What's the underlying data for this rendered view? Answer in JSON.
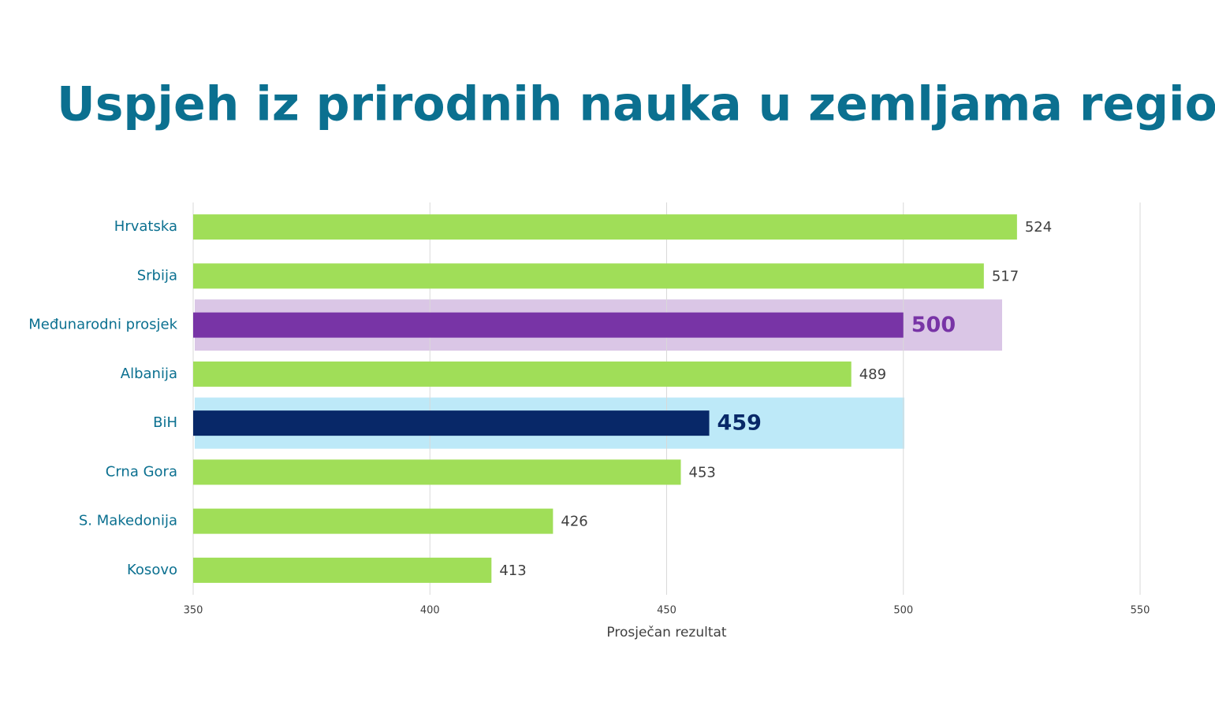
{
  "chart_data": {
    "type": "bar",
    "orientation": "horizontal",
    "title": "Uspjeh iz prirodnih nauka u zemljama regiona",
    "categories": [
      "Hrvatska",
      "Srbija",
      "Međunarodni prosjek",
      "Albanija",
      "BiH",
      "Crna Gora",
      "S. Makedonija",
      "Kosovo"
    ],
    "values": [
      524,
      517,
      500,
      489,
      459,
      453,
      426,
      413
    ],
    "colors": [
      "#a0de58",
      "#a0de58",
      "#7834a6",
      "#a0de58",
      "#082868",
      "#a0de58",
      "#a0de58",
      "#a0de58"
    ],
    "highlight_colors": [
      null,
      null,
      "#dac6e6",
      null,
      "#bde9f8",
      null,
      null,
      null
    ],
    "xlim": [
      350,
      550
    ],
    "xticks": [
      350,
      400,
      450,
      500,
      550
    ],
    "xlabel": "Prosječan rezultat",
    "grid": true
  }
}
